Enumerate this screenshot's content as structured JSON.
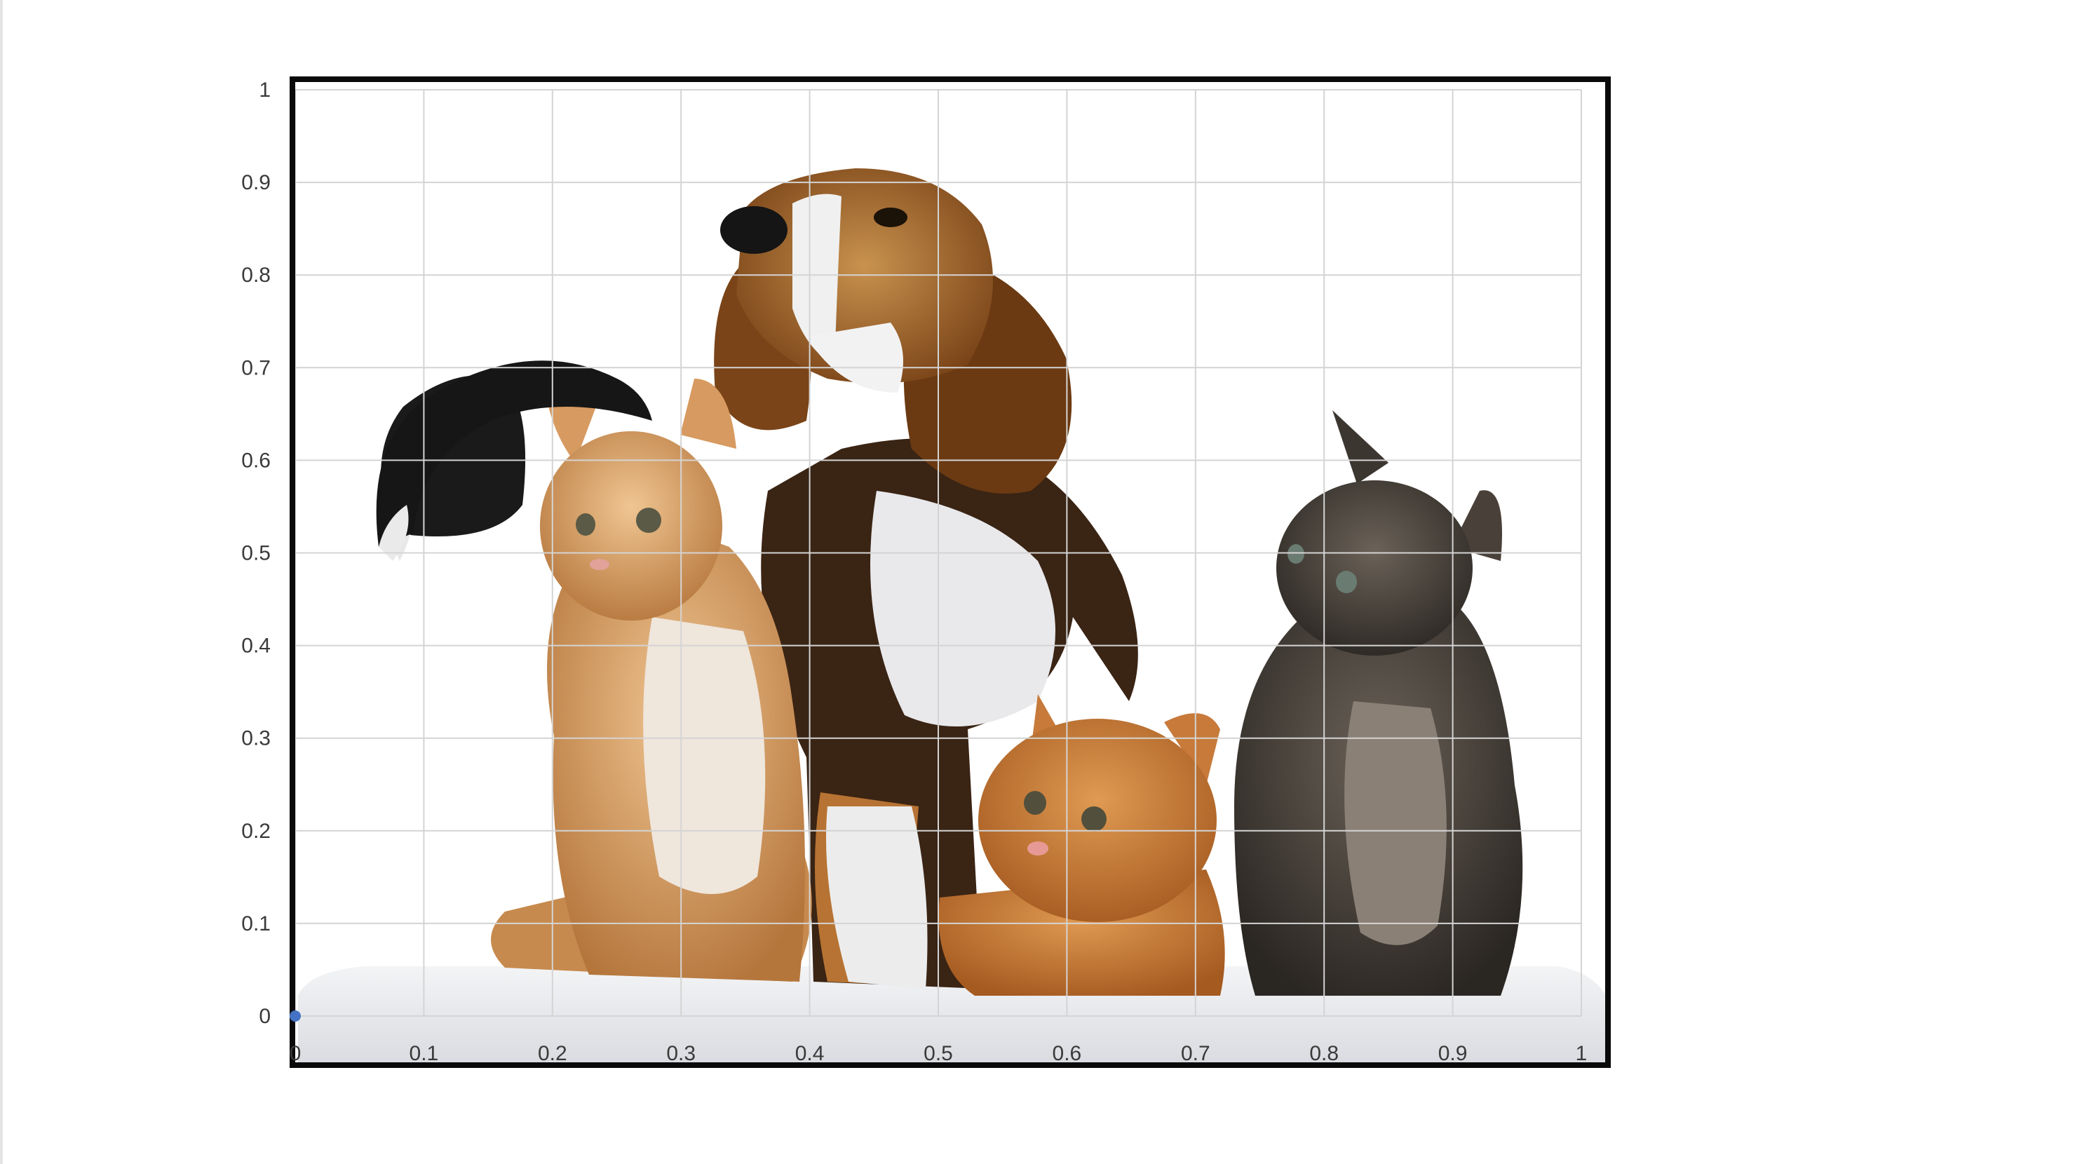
{
  "chart_data": {
    "type": "scatter",
    "title": "",
    "xlabel": "",
    "ylabel": "",
    "xlim": [
      0,
      1
    ],
    "ylim": [
      0,
      1
    ],
    "grid": true,
    "x_ticks": [
      "0",
      "0.1",
      "0.2",
      "0.3",
      "0.4",
      "0.5",
      "0.6",
      "0.7",
      "0.8",
      "0.9",
      "1"
    ],
    "y_ticks": [
      "0",
      "0.1",
      "0.2",
      "0.3",
      "0.4",
      "0.5",
      "0.6",
      "0.7",
      "0.8",
      "0.9",
      "1"
    ],
    "background_image": "photo of a beagle puppy and three kittens sitting on a white towel",
    "series": [
      {
        "points": [
          {
            "x": 0,
            "y": 0
          }
        ],
        "color": "#4472c4"
      }
    ],
    "frame_color": "#0a0a0a",
    "grid_color": "#d4d4d4"
  }
}
